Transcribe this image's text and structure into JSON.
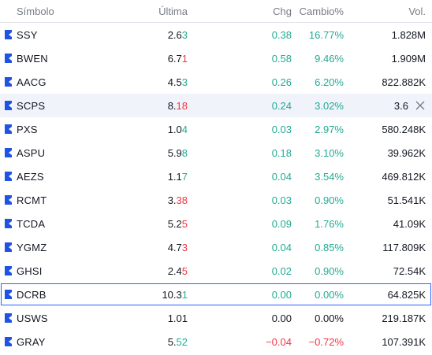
{
  "headers": {
    "symbol": "Símbolo",
    "last": "Última",
    "chg": "Chg",
    "chg_pct": "Cambio%",
    "vol": "Vol."
  },
  "rows": [
    {
      "symbol": "SSY",
      "last_a": "2.6",
      "last_b": "3",
      "last_dir": "pos",
      "chg": "0.38",
      "chg_pct": "16.77%",
      "dir": "pos",
      "vol": "1.828M"
    },
    {
      "symbol": "BWEN",
      "last_a": "6.7",
      "last_b": "1",
      "last_dir": "neg",
      "chg": "0.58",
      "chg_pct": "9.46%",
      "dir": "pos",
      "vol": "1.909M"
    },
    {
      "symbol": "AACG",
      "last_a": "4.5",
      "last_b": "3",
      "last_dir": "pos",
      "chg": "0.26",
      "chg_pct": "6.20%",
      "dir": "pos",
      "vol": "822.882K"
    },
    {
      "symbol": "SCPS",
      "last_a": "8.",
      "last_b": "18",
      "last_dir": "neg",
      "chg": "0.24",
      "chg_pct": "3.02%",
      "dir": "pos",
      "vol": "3.6"
    },
    {
      "symbol": "PXS",
      "last_a": "1.0",
      "last_b": "4",
      "last_dir": "pos",
      "chg": "0.03",
      "chg_pct": "2.97%",
      "dir": "pos",
      "vol": "580.248K"
    },
    {
      "symbol": "ASPU",
      "last_a": "5.9",
      "last_b": "8",
      "last_dir": "pos",
      "chg": "0.18",
      "chg_pct": "3.10%",
      "dir": "pos",
      "vol": "39.962K"
    },
    {
      "symbol": "AEZS",
      "last_a": "1.1",
      "last_b": "7",
      "last_dir": "pos",
      "chg": "0.04",
      "chg_pct": "3.54%",
      "dir": "pos",
      "vol": "469.812K"
    },
    {
      "symbol": "RCMT",
      "last_a": "3.",
      "last_b": "38",
      "last_dir": "neg",
      "chg": "0.03",
      "chg_pct": "0.90%",
      "dir": "pos",
      "vol": "51.541K"
    },
    {
      "symbol": "TCDA",
      "last_a": "5.2",
      "last_b": "5",
      "last_dir": "neg",
      "chg": "0.09",
      "chg_pct": "1.76%",
      "dir": "pos",
      "vol": "41.09K"
    },
    {
      "symbol": "YGMZ",
      "last_a": "4.7",
      "last_b": "3",
      "last_dir": "neg",
      "chg": "0.04",
      "chg_pct": "0.85%",
      "dir": "pos",
      "vol": "117.809K"
    },
    {
      "symbol": "GHSI",
      "last_a": "2.4",
      "last_b": "5",
      "last_dir": "neg",
      "chg": "0.02",
      "chg_pct": "0.90%",
      "dir": "pos",
      "vol": "72.54K"
    },
    {
      "symbol": "DCRB",
      "last_a": "10.3",
      "last_b": "1",
      "last_dir": "pos",
      "chg": "0.00",
      "chg_pct": "0.00%",
      "dir": "pos",
      "vol": "64.825K"
    },
    {
      "symbol": "USWS",
      "last_a": "1.01",
      "last_b": "",
      "last_dir": "neu",
      "chg": "0.00",
      "chg_pct": "0.00%",
      "dir": "neu",
      "vol": "219.187K"
    },
    {
      "symbol": "GRAY",
      "last_a": "5.",
      "last_b": "52",
      "last_dir": "pos",
      "chg": "−0.04",
      "chg_pct": "−0.72%",
      "dir": "neg",
      "vol": "107.391K"
    }
  ],
  "colors": {
    "positive": "#22ab94",
    "negative": "#f23645",
    "flag": "#1e53e5",
    "selected_border": "#2962ff"
  },
  "icons": {
    "flag": "flag-icon",
    "remove": "close-icon"
  }
}
